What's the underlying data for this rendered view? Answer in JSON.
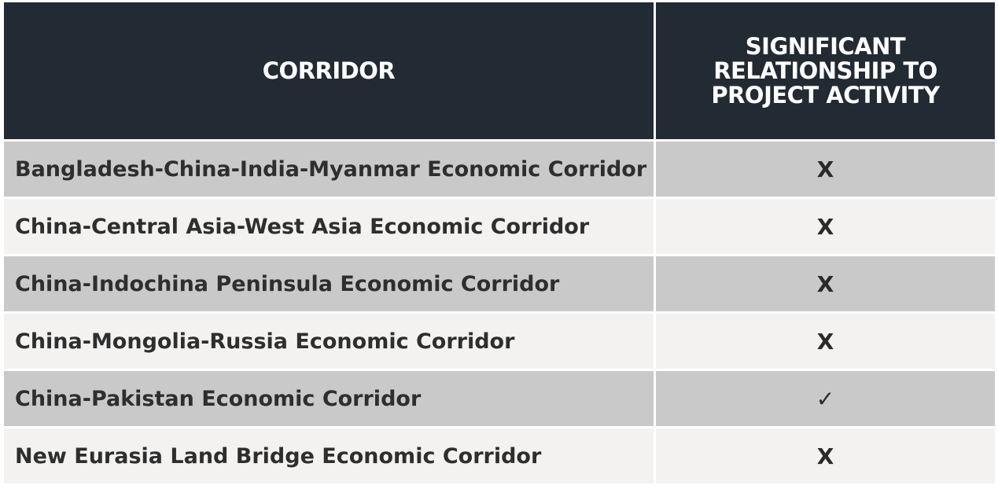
{
  "header": {
    "corridor": "CORRIDOR",
    "relationship": "SIGNIFICANT RELATIONSHIP TO PROJECT ACTIVITY"
  },
  "rows": [
    {
      "corridor": "Bangladesh-China-India-Myanmar Economic Corridor",
      "mark": "X"
    },
    {
      "corridor": "China-Central Asia-West Asia Economic Corridor",
      "mark": "X"
    },
    {
      "corridor": "China-Indochina Peninsula Economic Corridor",
      "mark": "X"
    },
    {
      "corridor": "China-Mongolia-Russia Economic Corridor",
      "mark": "X"
    },
    {
      "corridor": "China-Pakistan Economic Corridor",
      "mark": "✓"
    },
    {
      "corridor": "New Eurasia Land Bridge Economic Corridor",
      "mark": "X"
    }
  ],
  "colors": {
    "header_bg": "#222a33",
    "row_dark": "#c9c9c9",
    "row_light": "#f3f2f0"
  }
}
